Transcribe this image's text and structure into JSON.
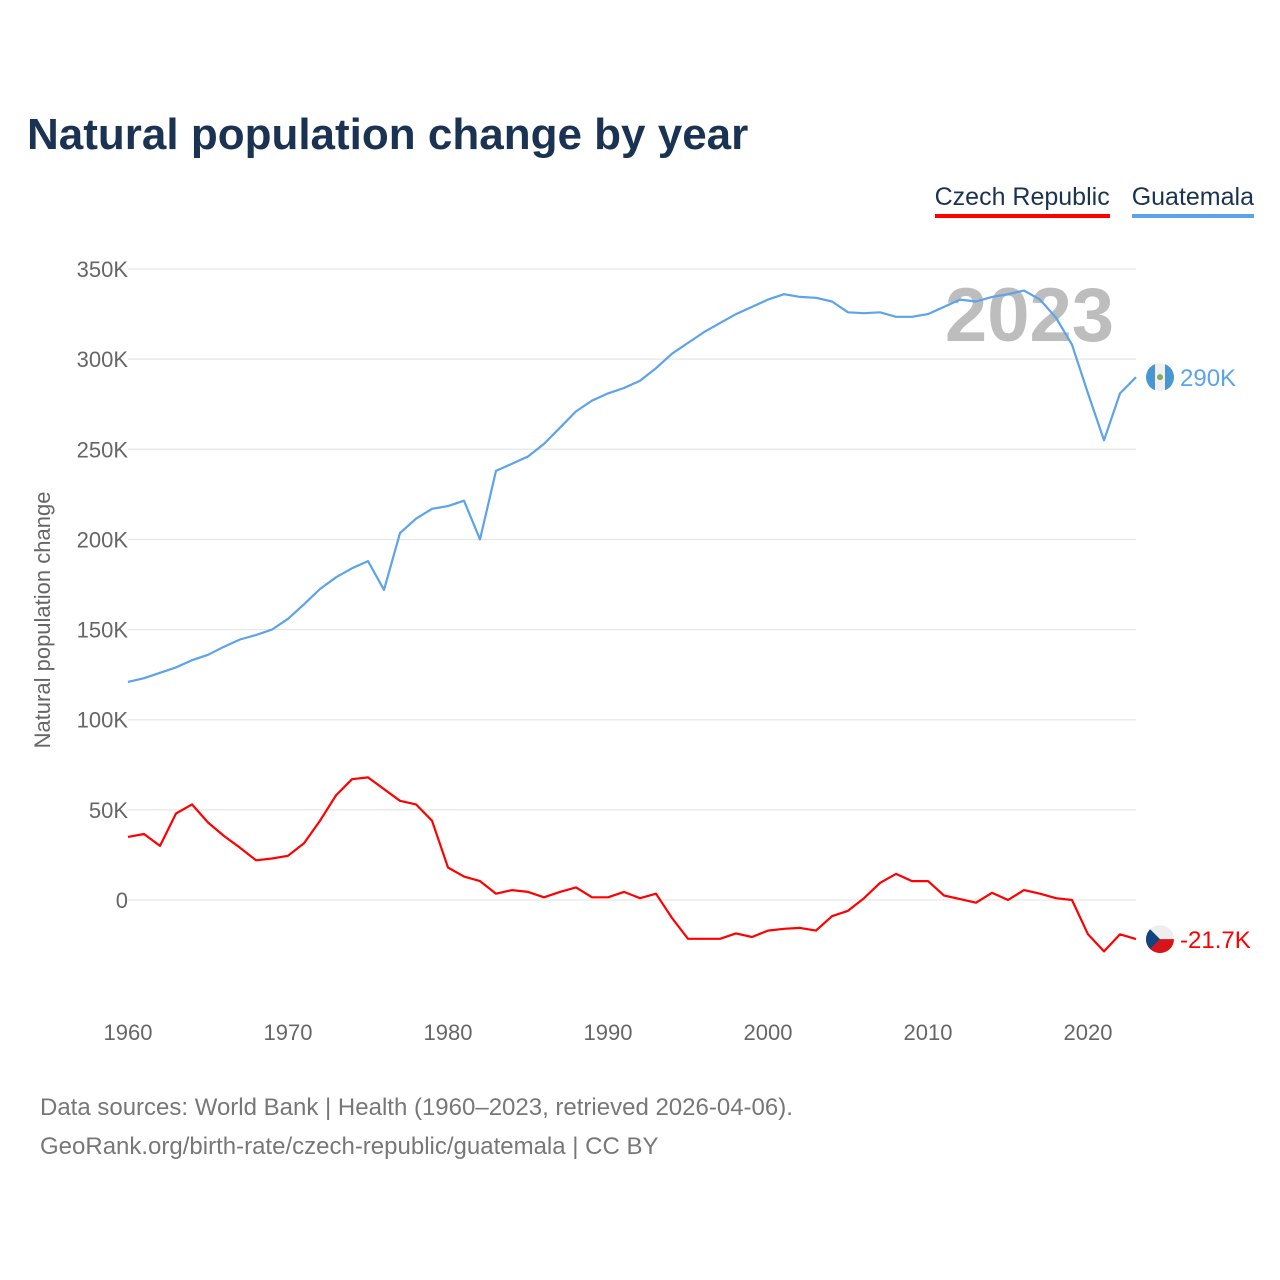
{
  "chart_data": {
    "type": "line",
    "title": "Natural population change by year",
    "ylabel": "Natural population change",
    "xlabel": "",
    "xlim": [
      1960,
      2023
    ],
    "ylim": [
      -60000,
      350000
    ],
    "yticks": [
      {
        "v": 0,
        "label": "0"
      },
      {
        "v": 50000,
        "label": "50K"
      },
      {
        "v": 100000,
        "label": "100K"
      },
      {
        "v": 150000,
        "label": "150K"
      },
      {
        "v": 200000,
        "label": "200K"
      },
      {
        "v": 250000,
        "label": "250K"
      },
      {
        "v": 300000,
        "label": "300K"
      },
      {
        "v": 350000,
        "label": "350K"
      }
    ],
    "xticks": [
      {
        "v": 1960,
        "label": "1960"
      },
      {
        "v": 1970,
        "label": "1970"
      },
      {
        "v": 1980,
        "label": "1980"
      },
      {
        "v": 1990,
        "label": "1990"
      },
      {
        "v": 2000,
        "label": "2000"
      },
      {
        "v": 2010,
        "label": "2010"
      },
      {
        "v": 2020,
        "label": "2020"
      }
    ],
    "grid": true,
    "legend_position": "top-right",
    "year_label": "2023",
    "x_start": 1960,
    "series": [
      {
        "name": "Czech Republic",
        "color": "#ff0000",
        "end_label": "-21.7K",
        "values": [
          35000,
          36600,
          30000,
          48000,
          53000,
          43000,
          35500,
          29000,
          22000,
          23000,
          24500,
          31500,
          44000,
          58000,
          67000,
          68000,
          61500,
          55000,
          53000,
          44000,
          18000,
          13000,
          10500,
          3500,
          5500,
          4500,
          1500,
          4500,
          7000,
          1500,
          1500,
          4500,
          1000,
          3500,
          -10000,
          -21500,
          -21500,
          -21500,
          -18500,
          -20500,
          -17000,
          -16000,
          -15500,
          -17000,
          -9000,
          -6000,
          1000,
          9500,
          14500,
          10500,
          10500,
          2500,
          500,
          -1500,
          4000,
          0,
          5500,
          3500,
          1000,
          0,
          -19000,
          -28500,
          -19000,
          -21700
        ]
      },
      {
        "name": "Guatemala",
        "color": "#5ba3ea",
        "end_label": "290K",
        "values": [
          121000,
          123000,
          126000,
          129000,
          133000,
          136000,
          140500,
          144500,
          147000,
          150000,
          156000,
          164000,
          172500,
          179000,
          184000,
          188000,
          172000,
          203500,
          211500,
          217000,
          218500,
          221500,
          200000,
          238000,
          242000,
          246000,
          253000,
          262000,
          271000,
          277000,
          281000,
          284000,
          288000,
          295000,
          303000,
          309000,
          315000,
          320000,
          325000,
          329000,
          333000,
          336000,
          334500,
          334000,
          332000,
          326000,
          325500,
          326000,
          323500,
          323500,
          325000,
          329000,
          333000,
          332000,
          334500,
          336000,
          338000,
          333000,
          323000,
          308000,
          281000,
          255000,
          281000,
          290000
        ]
      }
    ]
  },
  "footer": {
    "line1": "Data sources: World Bank | Health (1960–2023, retrieved 2026-04-06).",
    "line2": "GeoRank.org/birth-rate/czech-republic/guatemala | CC BY"
  }
}
